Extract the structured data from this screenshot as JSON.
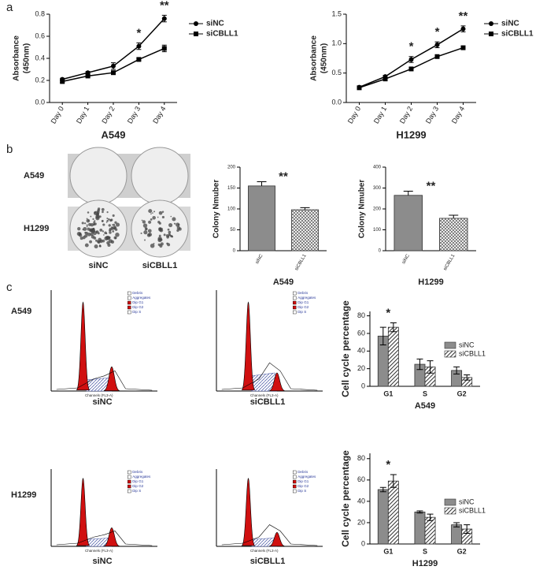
{
  "panel_labels": [
    "a",
    "b",
    "c"
  ],
  "colony": {
    "rows": [
      "A549",
      "H1299"
    ],
    "columns": [
      "siNC",
      "siCBLL1"
    ]
  },
  "flow": {
    "rows": [
      "A549",
      "H1299"
    ],
    "columns": [
      "siNC",
      "siCBLL1"
    ],
    "legend": [
      "Debris",
      "Aggregates",
      "Dip G1",
      "Dip G2",
      "Dip S"
    ],
    "x_label": "Channels (FL3-A)"
  },
  "chart_data": [
    {
      "type": "line",
      "xlabel": "A549",
      "ylabel": [
        "Absorbance",
        "(450nm)"
      ],
      "categories": [
        "Day 0",
        "Day 1",
        "Day 2",
        "Day 3",
        "Day 4"
      ],
      "ylim": [
        0,
        0.8
      ],
      "yticks": [
        {
          "value": 0,
          "label": "0.0"
        },
        {
          "value": 0.2,
          "label": "0.2"
        },
        {
          "value": 0.4,
          "label": "0.4"
        },
        {
          "value": 0.6,
          "label": "0.6"
        },
        {
          "value": 0.8,
          "label": "0.8"
        }
      ],
      "series": [
        {
          "name": "siNC",
          "color": "#000000",
          "marker": "circle",
          "values": [
            0.21,
            0.27,
            0.33,
            0.51,
            0.76
          ],
          "errors": [
            0.01,
            0.01,
            0.03,
            0.03,
            0.03
          ]
        },
        {
          "name": "siCBLL1",
          "color": "#000000",
          "marker": "square",
          "values": [
            0.19,
            0.24,
            0.27,
            0.39,
            0.49
          ],
          "errors": [
            0.01,
            0.01,
            0.01,
            0.01,
            0.03
          ]
        }
      ],
      "annotations": [
        {
          "text": "*",
          "x": "Day 3"
        },
        {
          "text": "**",
          "x": "Day 4"
        }
      ]
    },
    {
      "type": "line",
      "xlabel": "H1299",
      "ylabel": [
        "Absorbance",
        "(450nm)"
      ],
      "categories": [
        "Day 0",
        "Day 1",
        "Day 2",
        "Day 3",
        "Day 4"
      ],
      "ylim": [
        0,
        1.5
      ],
      "yticks": [
        {
          "value": 0,
          "label": "0.0"
        },
        {
          "value": 0.5,
          "label": "0.5"
        },
        {
          "value": 1,
          "label": "1.0"
        },
        {
          "value": 1.5,
          "label": "1.5"
        }
      ],
      "series": [
        {
          "name": "siNC",
          "color": "#000000",
          "marker": "circle",
          "values": [
            0.26,
            0.44,
            0.73,
            0.98,
            1.25
          ],
          "errors": [
            0.02,
            0.02,
            0.05,
            0.05,
            0.05
          ]
        },
        {
          "name": "siCBLL1",
          "color": "#000000",
          "marker": "square",
          "values": [
            0.25,
            0.4,
            0.57,
            0.78,
            0.93
          ],
          "errors": [
            0.02,
            0.02,
            0.02,
            0.02,
            0.03
          ]
        }
      ],
      "annotations": [
        {
          "text": "*",
          "x": "Day 2"
        },
        {
          "text": "*",
          "x": "Day 3"
        },
        {
          "text": "**",
          "x": "Day 4"
        }
      ]
    },
    {
      "type": "bar",
      "xlabel": "A549",
      "ylabel": [
        "Colony Nmuber"
      ],
      "categories": [
        "siNC",
        "siCBLL1"
      ],
      "values": [
        155,
        98
      ],
      "errors": [
        10,
        5
      ],
      "colors": [
        "#8c8c8c",
        "#ffffff"
      ],
      "patterns": [
        "solid",
        "crosshatch"
      ],
      "ylim": [
        0,
        200
      ],
      "yticks": [
        0,
        50,
        100,
        150,
        200
      ],
      "annotations": [
        {
          "text": "**",
          "x": "siCBLL1"
        }
      ]
    },
    {
      "type": "bar",
      "xlabel": "H1299",
      "ylabel": [
        "Colony Nmuber"
      ],
      "categories": [
        "siNC",
        "siCBLL1"
      ],
      "values": [
        265,
        155
      ],
      "errors": [
        20,
        15
      ],
      "colors": [
        "#8c8c8c",
        "#ffffff"
      ],
      "patterns": [
        "solid",
        "crosshatch"
      ],
      "ylim": [
        0,
        400
      ],
      "yticks": [
        0,
        100,
        200,
        300,
        400
      ],
      "annotations": [
        {
          "text": "**",
          "x": "siCBLL1"
        }
      ]
    },
    {
      "type": "grouped_bar",
      "xlabel": "A549",
      "ylabel": [
        "Cell cycle percentage"
      ],
      "categories": [
        "G1",
        "S",
        "G2"
      ],
      "ylim": [
        0,
        85
      ],
      "yticks": [
        0,
        20,
        40,
        60,
        80
      ],
      "series": [
        {
          "name": "siNC",
          "color": "#8c8c8c",
          "pattern": "solid",
          "values": [
            57,
            25,
            18
          ],
          "errors": [
            10,
            6,
            4
          ]
        },
        {
          "name": "siCBLL1",
          "color": "#ffffff",
          "pattern": "hatch",
          "values": [
            67,
            22,
            10
          ],
          "errors": [
            5,
            7,
            3
          ]
        }
      ],
      "annotations": [
        {
          "text": "*",
          "x": "G1"
        }
      ]
    },
    {
      "type": "grouped_bar",
      "xlabel": "H1299",
      "ylabel": [
        "Cell cycle percentage"
      ],
      "categories": [
        "G1",
        "S",
        "G2"
      ],
      "ylim": [
        0,
        85
      ],
      "yticks": [
        0,
        20,
        40,
        60,
        80
      ],
      "series": [
        {
          "name": "siNC",
          "color": "#8c8c8c",
          "pattern": "solid",
          "values": [
            51,
            30,
            18
          ],
          "errors": [
            2,
            1,
            2
          ]
        },
        {
          "name": "siCBLL1",
          "color": "#ffffff",
          "pattern": "hatch",
          "values": [
            59,
            25,
            14
          ],
          "errors": [
            6,
            3,
            4
          ]
        }
      ],
      "annotations": [
        {
          "text": "*",
          "x": "G1"
        }
      ]
    }
  ]
}
